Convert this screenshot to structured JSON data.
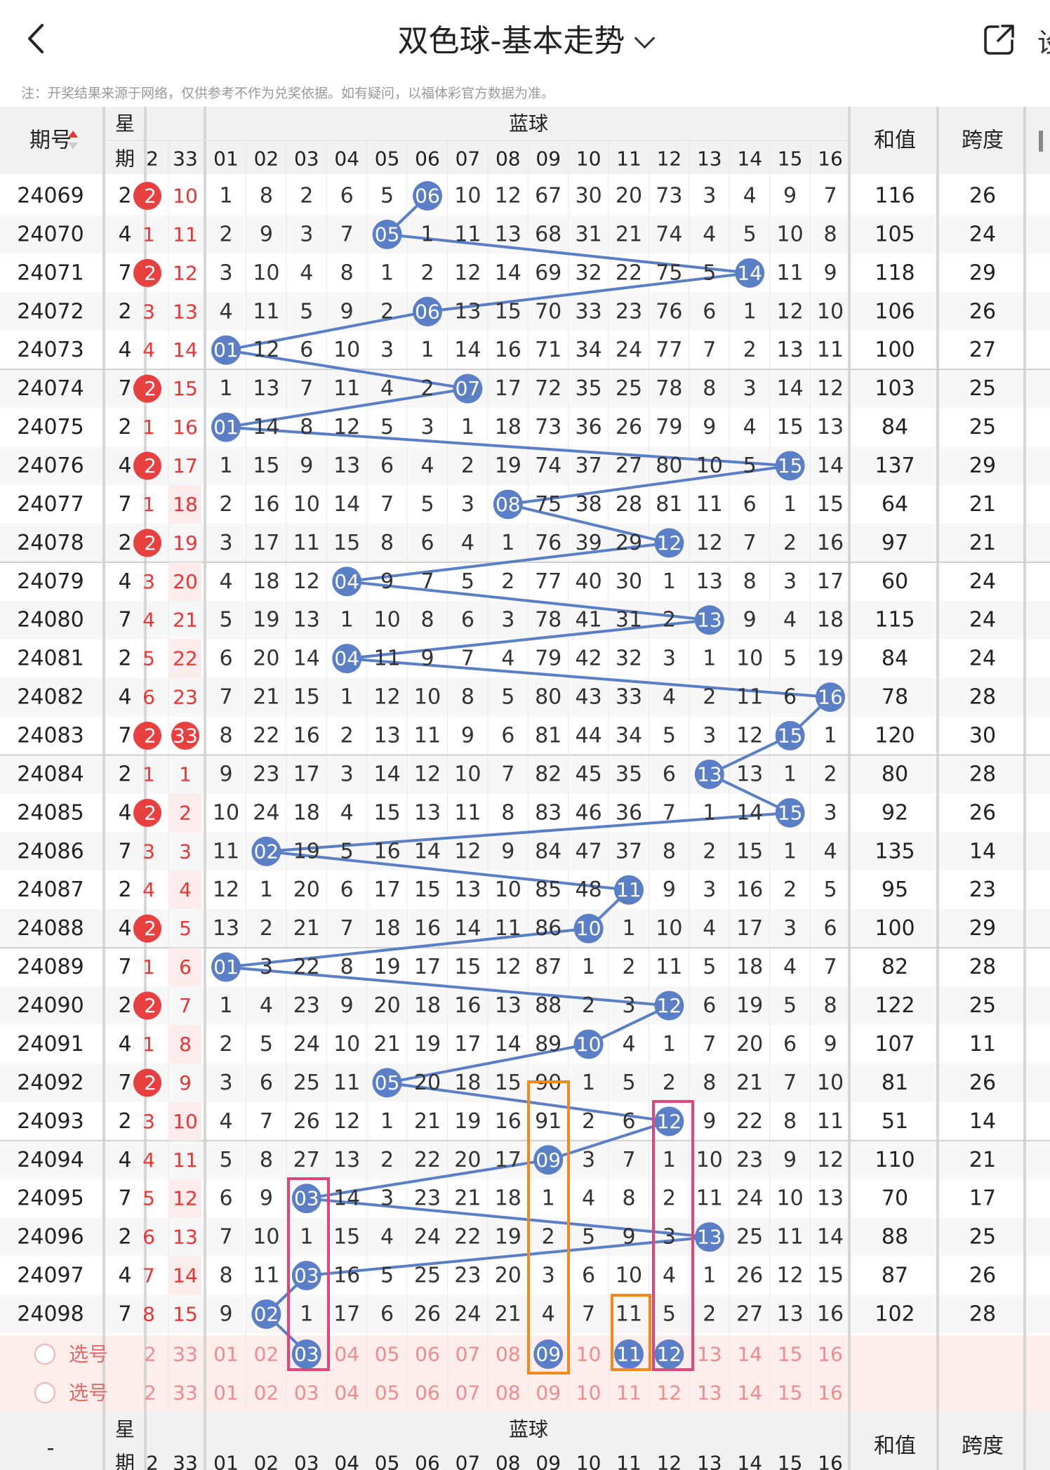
{
  "header": {
    "title": "双色球-基本走势",
    "right_text": "设"
  },
  "note": "注：开奖结果来源于网络，仅供参考不作为兑奖依据。如有疑问，以福体彩官方数据为准。",
  "columns": {
    "period": "期号",
    "weekday_top": "星",
    "weekday_bottom": "期",
    "blue_title": "蓝球",
    "sum": "和值",
    "span": "跨度",
    "red_partial": [
      "2",
      "33"
    ],
    "blue_numbers": [
      "01",
      "02",
      "03",
      "04",
      "05",
      "06",
      "07",
      "08",
      "09",
      "10",
      "11",
      "12",
      "13",
      "14",
      "15",
      "16"
    ]
  },
  "rows": [
    {
      "period": "24069",
      "week": "2",
      "r1": "2",
      "r2": "10",
      "blue": [
        1,
        8,
        2,
        6,
        5,
        "06",
        10,
        12,
        67,
        30,
        20,
        73,
        3,
        4,
        9,
        7
      ],
      "sum": "116",
      "span": "26"
    },
    {
      "period": "24070",
      "week": "4",
      "r1": "1",
      "r2": "11",
      "blue": [
        2,
        9,
        3,
        7,
        "05",
        1,
        11,
        13,
        68,
        31,
        21,
        74,
        4,
        5,
        10,
        8
      ],
      "sum": "105",
      "span": "24"
    },
    {
      "period": "24071",
      "week": "7",
      "r1": "2",
      "r2": "12",
      "blue": [
        3,
        10,
        4,
        8,
        1,
        2,
        12,
        14,
        69,
        32,
        22,
        75,
        5,
        "14",
        11,
        9
      ],
      "sum": "118",
      "span": "29"
    },
    {
      "period": "24072",
      "week": "2",
      "r1": "3",
      "r2": "13",
      "blue": [
        4,
        11,
        5,
        9,
        2,
        "06",
        13,
        15,
        70,
        33,
        23,
        76,
        6,
        1,
        12,
        10
      ],
      "sum": "106",
      "span": "26"
    },
    {
      "period": "24073",
      "week": "4",
      "r1": "4",
      "r2": "14",
      "blue": [
        "01",
        12,
        6,
        10,
        3,
        1,
        14,
        16,
        71,
        34,
        24,
        77,
        7,
        2,
        13,
        11
      ],
      "sum": "100",
      "span": "27"
    },
    {
      "period": "24074",
      "week": "7",
      "r1": "2",
      "r2": "15",
      "blue": [
        1,
        13,
        7,
        11,
        4,
        2,
        "07",
        17,
        72,
        35,
        25,
        78,
        8,
        3,
        14,
        12
      ],
      "sum": "103",
      "span": "25"
    },
    {
      "period": "24075",
      "week": "2",
      "r1": "1",
      "r2": "16",
      "blue": [
        "01",
        14,
        8,
        12,
        5,
        3,
        1,
        18,
        73,
        36,
        26,
        79,
        9,
        4,
        15,
        13
      ],
      "sum": "84",
      "span": "25"
    },
    {
      "period": "24076",
      "week": "4",
      "r1": "2",
      "r2": "17",
      "blue": [
        1,
        15,
        9,
        13,
        6,
        4,
        2,
        19,
        74,
        37,
        27,
        80,
        10,
        5,
        "15",
        14
      ],
      "sum": "137",
      "span": "29"
    },
    {
      "period": "24077",
      "week": "7",
      "r1": "1",
      "r2": "18",
      "blue": [
        2,
        16,
        10,
        14,
        7,
        5,
        3,
        "08",
        75,
        38,
        28,
        81,
        11,
        6,
        1,
        15
      ],
      "sum": "64",
      "span": "21"
    },
    {
      "period": "24078",
      "week": "2",
      "r1": "2",
      "r2": "19",
      "blue": [
        3,
        17,
        11,
        15,
        8,
        6,
        4,
        1,
        76,
        39,
        29,
        "12",
        12,
        7,
        2,
        16
      ],
      "sum": "97",
      "span": "21"
    },
    {
      "period": "24079",
      "week": "4",
      "r1": "3",
      "r2": "20",
      "blue": [
        4,
        18,
        12,
        "04",
        9,
        7,
        5,
        2,
        77,
        40,
        30,
        1,
        13,
        8,
        3,
        17
      ],
      "sum": "60",
      "span": "24"
    },
    {
      "period": "24080",
      "week": "7",
      "r1": "4",
      "r2": "21",
      "blue": [
        5,
        19,
        13,
        1,
        10,
        8,
        6,
        3,
        78,
        41,
        31,
        2,
        "13",
        9,
        4,
        18
      ],
      "sum": "115",
      "span": "24"
    },
    {
      "period": "24081",
      "week": "2",
      "r1": "5",
      "r2": "22",
      "blue": [
        6,
        20,
        14,
        "04",
        11,
        9,
        7,
        4,
        79,
        42,
        32,
        3,
        1,
        10,
        5,
        19
      ],
      "sum": "84",
      "span": "24"
    },
    {
      "period": "24082",
      "week": "4",
      "r1": "6",
      "r2": "23",
      "blue": [
        7,
        21,
        15,
        1,
        12,
        10,
        8,
        5,
        80,
        43,
        33,
        4,
        2,
        11,
        6,
        "16"
      ],
      "sum": "78",
      "span": "28"
    },
    {
      "period": "24083",
      "week": "7",
      "r1": "2",
      "r2": "33",
      "blue": [
        8,
        22,
        16,
        2,
        13,
        11,
        9,
        6,
        81,
        44,
        34,
        5,
        3,
        12,
        "15",
        1
      ],
      "sum": "120",
      "span": "30"
    },
    {
      "period": "24084",
      "week": "2",
      "r1": "1",
      "r2": "1",
      "blue": [
        9,
        23,
        17,
        3,
        14,
        12,
        10,
        7,
        82,
        45,
        35,
        6,
        "13",
        13,
        1,
        2
      ],
      "sum": "80",
      "span": "28"
    },
    {
      "period": "24085",
      "week": "4",
      "r1": "2",
      "r2": "2",
      "blue": [
        10,
        24,
        18,
        4,
        15,
        13,
        11,
        8,
        83,
        46,
        36,
        7,
        1,
        14,
        "15",
        3
      ],
      "sum": "92",
      "span": "26"
    },
    {
      "period": "24086",
      "week": "7",
      "r1": "3",
      "r2": "3",
      "blue": [
        11,
        "02",
        19,
        5,
        16,
        14,
        12,
        9,
        84,
        47,
        37,
        8,
        2,
        15,
        1,
        4
      ],
      "sum": "135",
      "span": "14"
    },
    {
      "period": "24087",
      "week": "2",
      "r1": "4",
      "r2": "4",
      "blue": [
        12,
        1,
        20,
        6,
        17,
        15,
        13,
        10,
        85,
        48,
        "11",
        9,
        3,
        16,
        2,
        5
      ],
      "sum": "95",
      "span": "23"
    },
    {
      "period": "24088",
      "week": "4",
      "r1": "2",
      "r2": "5",
      "blue": [
        13,
        2,
        21,
        7,
        18,
        16,
        14,
        11,
        86,
        "10",
        1,
        10,
        4,
        17,
        3,
        6
      ],
      "sum": "100",
      "span": "29"
    },
    {
      "period": "24089",
      "week": "7",
      "r1": "1",
      "r2": "6",
      "blue": [
        "01",
        3,
        22,
        8,
        19,
        17,
        15,
        12,
        87,
        1,
        2,
        11,
        5,
        18,
        4,
        7
      ],
      "sum": "82",
      "span": "28"
    },
    {
      "period": "24090",
      "week": "2",
      "r1": "2",
      "r2": "7",
      "blue": [
        1,
        4,
        23,
        9,
        20,
        18,
        16,
        13,
        88,
        2,
        3,
        "12",
        6,
        19,
        5,
        8
      ],
      "sum": "122",
      "span": "25"
    },
    {
      "period": "24091",
      "week": "4",
      "r1": "1",
      "r2": "8",
      "blue": [
        2,
        5,
        24,
        10,
        21,
        19,
        17,
        14,
        89,
        "10",
        4,
        1,
        7,
        20,
        6,
        9
      ],
      "sum": "107",
      "span": "11"
    },
    {
      "period": "24092",
      "week": "7",
      "r1": "2",
      "r2": "9",
      "blue": [
        3,
        6,
        25,
        11,
        "05",
        20,
        18,
        15,
        90,
        1,
        5,
        2,
        8,
        21,
        7,
        10
      ],
      "sum": "81",
      "span": "26"
    },
    {
      "period": "24093",
      "week": "2",
      "r1": "3",
      "r2": "10",
      "blue": [
        4,
        7,
        26,
        12,
        1,
        21,
        19,
        16,
        91,
        2,
        6,
        "12",
        9,
        22,
        8,
        11
      ],
      "sum": "51",
      "span": "14"
    },
    {
      "period": "24094",
      "week": "4",
      "r1": "4",
      "r2": "11",
      "blue": [
        5,
        8,
        27,
        13,
        2,
        22,
        20,
        17,
        "09",
        3,
        7,
        1,
        10,
        23,
        9,
        12
      ],
      "sum": "110",
      "span": "21"
    },
    {
      "period": "24095",
      "week": "7",
      "r1": "5",
      "r2": "12",
      "blue": [
        6,
        9,
        "03",
        14,
        3,
        23,
        21,
        18,
        1,
        4,
        8,
        2,
        11,
        24,
        10,
        13
      ],
      "sum": "70",
      "span": "17"
    },
    {
      "period": "24096",
      "week": "2",
      "r1": "6",
      "r2": "13",
      "blue": [
        7,
        10,
        1,
        15,
        4,
        24,
        22,
        19,
        2,
        5,
        9,
        3,
        "13",
        25,
        11,
        14
      ],
      "sum": "88",
      "span": "25"
    },
    {
      "period": "24097",
      "week": "4",
      "r1": "7",
      "r2": "14",
      "blue": [
        8,
        11,
        "03",
        16,
        5,
        25,
        23,
        20,
        3,
        6,
        10,
        4,
        1,
        26,
        12,
        15
      ],
      "sum": "87",
      "span": "26"
    },
    {
      "period": "24098",
      "week": "7",
      "r1": "8",
      "r2": "15",
      "blue": [
        9,
        "02",
        1,
        17,
        6,
        26,
        24,
        21,
        4,
        7,
        11,
        5,
        2,
        27,
        13,
        16
      ],
      "sum": "102",
      "span": "28"
    }
  ],
  "select_rows": [
    {
      "label": "选号",
      "red": [
        "2",
        "33"
      ],
      "blue_picked": [
        "03",
        "09",
        "11",
        "12"
      ]
    },
    {
      "label": "选号",
      "red": [
        "2",
        "33"
      ],
      "blue_picked": []
    }
  ],
  "footer": {
    "dash": "-"
  },
  "colors": {
    "blue_ball": "#5b7fc7",
    "red_ball": "#e83f3f",
    "red_text": "#e33",
    "pick_bg": "#fdeeec",
    "pink_box": "#e0457b",
    "orange_box": "#f08a1e"
  }
}
